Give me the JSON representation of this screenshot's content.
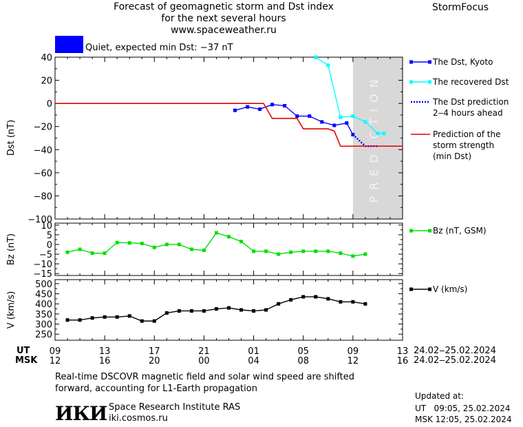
{
  "header": {
    "title_line1": "Forecast of geomagnetic storm and Dst index",
    "title_line2": "for the next several hours",
    "url": "www.spaceweather.ru",
    "brand": "StormFocus"
  },
  "status": {
    "text": "Quiet, expected min Dst: −37 nT",
    "color": "#0000ff"
  },
  "prediction_label": "PREDICTION",
  "time_axis": {
    "ut_label": "UT",
    "msk_label": "MSK",
    "ut_ticks": [
      "09",
      "13",
      "17",
      "21",
      "01",
      "05",
      "09",
      "13"
    ],
    "msk_ticks": [
      "12",
      "16",
      "20",
      "00",
      "04",
      "08",
      "12",
      "16"
    ],
    "ut_range": "24.02‒25.02.2024",
    "msk_range": "24.02‒25.02.2024"
  },
  "footer": {
    "note_line1": "Real-time DSCOVR magnetic field and solar wind speed are shifted",
    "note_line2": "forward, accounting for L1-Earth propagation",
    "logo": "ИКИ",
    "institute": "Space Research Institute RAS",
    "site": "iki.cosmos.ru",
    "updated_label": "Updated at:",
    "updated_ut": "UT   09:05, 25.02.2024",
    "updated_msk": "MSK 12:05, 25.02.2024"
  },
  "chart_data": [
    {
      "type": "line",
      "ylabel": "Dst (nT)",
      "ylim": [
        -100,
        40
      ],
      "yticks": [
        40,
        20,
        0,
        -20,
        -40,
        -60,
        -80,
        -100
      ],
      "x_unit": "hours since 24.02.2024 09:00 UT",
      "xlim": [
        0,
        28
      ],
      "prediction_start": 24,
      "series": [
        {
          "name": "The Dst, Kyoto",
          "color": "#0000ff",
          "marker": "square",
          "x": [
            14.5,
            15.5,
            16.5,
            17.5,
            18.5,
            19.5,
            20.5,
            21.5,
            22.5,
            23.5,
            24
          ],
          "y": [
            -6,
            -3,
            -5,
            -1,
            -2,
            -11,
            -11,
            -16,
            -19,
            -17,
            -27
          ]
        },
        {
          "name": "The recovered Dst",
          "color": "#00ffff",
          "marker": "square",
          "x": [
            21,
            22,
            23,
            24,
            25,
            26,
            26.5
          ],
          "y": [
            40,
            33,
            -12,
            -11,
            -16,
            -26,
            -26
          ]
        },
        {
          "name": "The Dst prediction 2‒4 hours ahead",
          "color": "#0000ff",
          "style": "dotted",
          "x": [
            24,
            25,
            26
          ],
          "y": [
            -27,
            -37,
            -37
          ]
        },
        {
          "name": "Prediction of the storm strength (min Dst)",
          "color": "#e00000",
          "style": "step",
          "x": [
            0,
            16.8,
            17.5,
            19.5,
            20,
            22,
            22.5,
            23,
            25,
            28
          ],
          "y": [
            0,
            0,
            -13,
            -13,
            -22,
            -22,
            -24,
            -37,
            -37,
            -37
          ]
        }
      ],
      "legend": [
        {
          "text": [
            "The Dst, Kyoto"
          ],
          "color": "#0000ff",
          "kind": "line-marker"
        },
        {
          "text": [
            "The recovered Dst"
          ],
          "color": "#00ffff",
          "kind": "line-marker"
        },
        {
          "text": [
            "The Dst prediction",
            "2‒4 hours ahead"
          ],
          "color": "#0000ff",
          "kind": "dotted"
        },
        {
          "text": [
            "Prediction of the",
            "storm strength",
            "(min Dst)"
          ],
          "color": "#e00000",
          "kind": "line"
        }
      ]
    },
    {
      "type": "line",
      "ylabel": "Bz (nT)",
      "ylim": [
        -16,
        11
      ],
      "yticks": [
        10,
        5,
        0,
        -5,
        -10,
        -15
      ],
      "x_unit": "hours since 24.02.2024 09:00 UT",
      "xlim": [
        0,
        28
      ],
      "series": [
        {
          "name": "Bz (nT, GSM)",
          "color": "#00e000",
          "marker": "square",
          "x": [
            1,
            2,
            3,
            4,
            5,
            6,
            7,
            8,
            9,
            10,
            11,
            12,
            13,
            14,
            15,
            16,
            17,
            18,
            19,
            20,
            21,
            22,
            23,
            24,
            25
          ],
          "y": [
            -4,
            -2.5,
            -4.5,
            -4.5,
            1,
            0.8,
            0.5,
            -1.5,
            0,
            0,
            -2.5,
            -3,
            6,
            4,
            1.5,
            -3.5,
            -3.5,
            -5,
            -4,
            -3.5,
            -3.5,
            -3.5,
            -4.5,
            -6,
            -5
          ]
        }
      ],
      "legend": [
        {
          "text": [
            "Bz (nT, GSM)"
          ],
          "color": "#00e000",
          "kind": "line-marker"
        }
      ]
    },
    {
      "type": "line",
      "ylabel": "V (km/s)",
      "ylim": [
        220,
        520
      ],
      "yticks": [
        500,
        450,
        400,
        350,
        300,
        250
      ],
      "x_unit": "hours since 24.02.2024 09:00 UT",
      "xlim": [
        0,
        28
      ],
      "series": [
        {
          "name": "V (km/s)",
          "color": "#000000",
          "marker": "square",
          "x": [
            1,
            2,
            3,
            4,
            5,
            6,
            7,
            8,
            9,
            10,
            11,
            12,
            13,
            14,
            15,
            16,
            17,
            18,
            19,
            20,
            21,
            22,
            23,
            24,
            25
          ],
          "y": [
            320,
            320,
            330,
            335,
            335,
            340,
            315,
            315,
            355,
            365,
            365,
            365,
            375,
            380,
            370,
            365,
            370,
            400,
            420,
            435,
            435,
            425,
            410,
            410,
            400
          ]
        }
      ],
      "legend": [
        {
          "text": [
            "V (km/s)"
          ],
          "color": "#000000",
          "kind": "line-marker"
        }
      ]
    }
  ]
}
